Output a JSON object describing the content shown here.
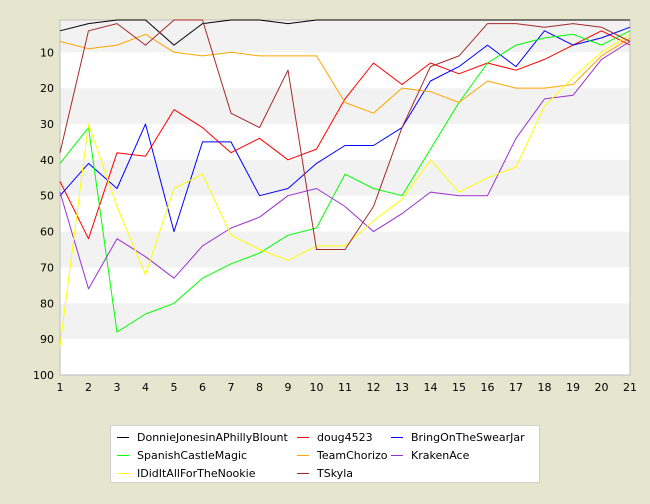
{
  "chart_data": {
    "type": "line",
    "title": "",
    "xlabel": "",
    "ylabel": "",
    "x": [
      1,
      2,
      3,
      4,
      5,
      6,
      7,
      8,
      9,
      10,
      11,
      12,
      13,
      14,
      15,
      16,
      17,
      18,
      19,
      20,
      21
    ],
    "xlim": [
      1,
      21
    ],
    "ylim": [
      1,
      100
    ],
    "y_inverted": true,
    "x_ticks": [
      "1",
      "2",
      "3",
      "4",
      "5",
      "6",
      "7",
      "8",
      "9",
      "10",
      "11",
      "12",
      "13",
      "14",
      "15",
      "16",
      "17",
      "18",
      "19",
      "20",
      "21"
    ],
    "y_ticks": [
      "10",
      "20",
      "30",
      "40",
      "50",
      "60",
      "70",
      "80",
      "90",
      "100"
    ],
    "grid": "alternating horizontal bands",
    "legend_position": "bottom",
    "series": [
      {
        "name": "DonnieJonesinAPhillyBlount",
        "color": "#000000",
        "values": [
          4,
          2,
          1,
          1,
          8,
          2,
          1,
          1,
          2,
          1,
          1,
          1,
          1,
          1,
          1,
          1,
          1,
          1,
          1,
          1,
          1
        ]
      },
      {
        "name": "doug4523",
        "color": "#ff0000",
        "values": [
          46,
          62,
          38,
          39,
          26,
          31,
          38,
          34,
          40,
          37,
          23,
          13,
          19,
          13,
          16,
          13,
          15,
          12,
          8,
          4,
          8
        ]
      },
      {
        "name": "BringOnTheSwearJar",
        "color": "#0000ff",
        "values": [
          50,
          41,
          48,
          30,
          60,
          35,
          35,
          50,
          48,
          41,
          36,
          36,
          31,
          18,
          14,
          8,
          14,
          4,
          8,
          6,
          3
        ]
      },
      {
        "name": "SpanishCastleMagic",
        "color": "#00ff00",
        "values": [
          41,
          31,
          88,
          83,
          80,
          73,
          69,
          66,
          61,
          59,
          44,
          48,
          50,
          37,
          24,
          13,
          8,
          6,
          5,
          8,
          4
        ]
      },
      {
        "name": "TeamChorizo",
        "color": "#ffa500",
        "values": [
          7,
          9,
          8,
          5,
          10,
          11,
          10,
          11,
          11,
          11,
          24,
          27,
          20,
          21,
          24,
          18,
          20,
          20,
          19,
          11,
          6
        ]
      },
      {
        "name": "KrakenAce",
        "color": "#9932cc",
        "values": [
          49,
          76,
          62,
          67,
          73,
          64,
          59,
          56,
          50,
          48,
          53,
          60,
          55,
          49,
          50,
          50,
          34,
          23,
          22,
          12,
          7
        ]
      },
      {
        "name": "IDidItAllForTheNookie",
        "color": "#ffff00",
        "values": [
          92,
          30,
          53,
          72,
          48,
          44,
          61,
          65,
          68,
          64,
          64,
          57,
          51,
          40,
          49,
          45,
          42,
          25,
          17,
          10,
          5
        ]
      },
      {
        "name": "TSkyla",
        "color": "#a52a2a",
        "values": [
          38,
          4,
          2,
          8,
          1,
          1,
          27,
          31,
          15,
          65,
          65,
          53,
          31,
          14,
          11,
          2,
          2,
          3,
          2,
          3,
          7
        ]
      }
    ]
  }
}
